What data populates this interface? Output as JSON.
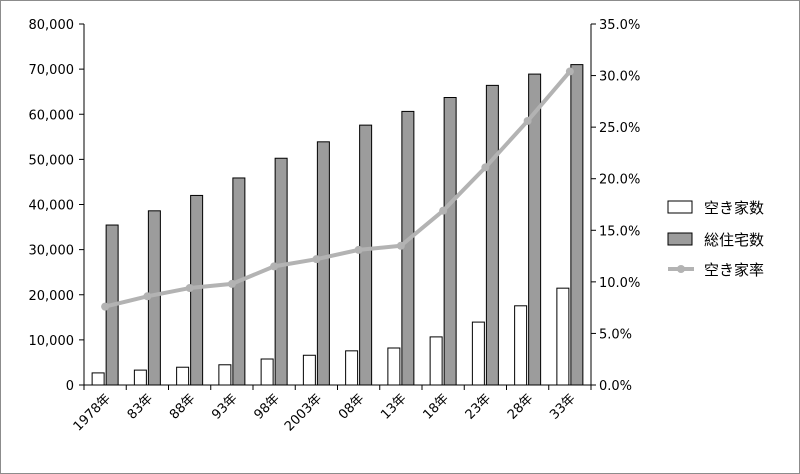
{
  "chart_data": {
    "type": "bar+line",
    "title": "",
    "categories": [
      "1978年",
      "83年",
      "88年",
      "93年",
      "98年",
      "2003年",
      "08年",
      "13年",
      "18年",
      "23年",
      "28年",
      "33年"
    ],
    "series": [
      {
        "name": "空き家数",
        "type": "bar",
        "axis": "left",
        "color": "#ffffff",
        "values": [
          2680,
          3300,
          3940,
          4480,
          5760,
          6590,
          7570,
          8200,
          10660,
          13940,
          17550,
          21460
        ]
      },
      {
        "name": "総住宅数",
        "type": "bar",
        "axis": "left",
        "color": "#9c9c9c",
        "values": [
          35450,
          38600,
          42010,
          45880,
          50250,
          53890,
          57590,
          60630,
          63710,
          66400,
          68900,
          71000
        ]
      },
      {
        "name": "空き家率",
        "type": "line",
        "axis": "right",
        "color": "#b3b3b3",
        "values": [
          7.6,
          8.6,
          9.4,
          9.8,
          11.5,
          12.2,
          13.1,
          13.5,
          16.9,
          21.1,
          25.6,
          30.4
        ]
      }
    ],
    "y_left": {
      "min": 0,
      "max": 80000,
      "ticks": [
        "0",
        "10,000",
        "20,000",
        "30,000",
        "40,000",
        "50,000",
        "60,000",
        "70,000",
        "80,000"
      ]
    },
    "y_right": {
      "min": 0,
      "max": 35,
      "ticks": [
        "0.0%",
        "5.0%",
        "10.0%",
        "15.0%",
        "20.0%",
        "25.0%",
        "30.0%",
        "35.0%"
      ]
    },
    "legend": {
      "position": "right"
    },
    "grid": false
  }
}
